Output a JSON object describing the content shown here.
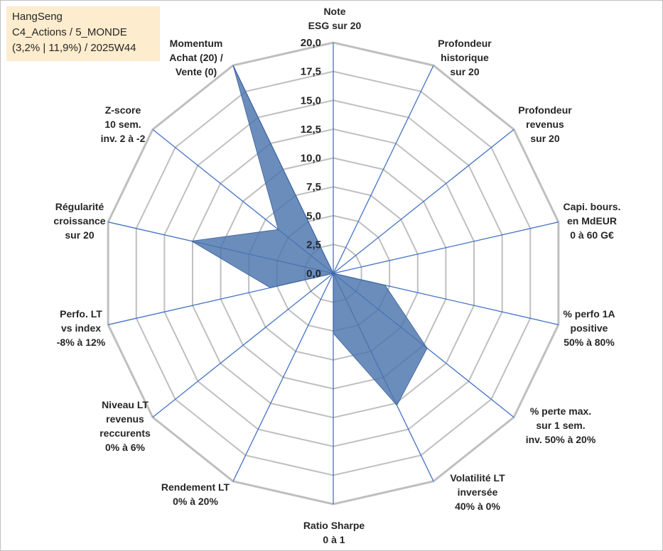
{
  "info_box": {
    "line1": "HangSeng",
    "line2": "C4_Actions / 5_MONDE",
    "line3": "(3,2% | 11,9%) / 2025W44"
  },
  "chart_data": {
    "type": "radar",
    "categories": [
      [
        "Note",
        "ESG sur 20"
      ],
      [
        "Profondeur",
        "historique",
        "sur 20"
      ],
      [
        "Profondeur",
        "revenus",
        "sur 20"
      ],
      [
        "Capi. bours.",
        "en MdEUR",
        "0 à 60 G€"
      ],
      [
        "% perfo 1A",
        "positive",
        "50% à 80%"
      ],
      [
        "% perte max.",
        "sur 1 sem.",
        "inv. 50% à 20%"
      ],
      [
        "Volatilité LT",
        "inversée",
        "40% à 0%"
      ],
      [
        "Ratio Sharpe",
        "0 à 1"
      ],
      [
        "Rendement LT",
        "0% à 20%"
      ],
      [
        "Niveau LT",
        "revenus",
        "reccurents",
        "0% à 6%"
      ],
      [
        "Perfo. LT",
        "vs index",
        "-8% à 12%"
      ],
      [
        "Régularité",
        "croissance",
        "sur 20"
      ],
      [
        "Z-score",
        "10 sem.",
        "inv. 2 à -2"
      ],
      [
        "Momentum",
        "Achat (20) /",
        "Vente (0)"
      ]
    ],
    "values": [
      0,
      0,
      0,
      0,
      4.6,
      10.4,
      12.7,
      5.2,
      0,
      0,
      5.6,
      12.6,
      6.1,
      20
    ],
    "ylim": [
      0,
      20
    ],
    "ticks": [
      "0,0",
      "2,5",
      "5,0",
      "7,5",
      "10,0",
      "12,5",
      "15,0",
      "17,5",
      "20,0"
    ],
    "colors": {
      "fill": "#4a74ad",
      "grid": "#bfbfbf",
      "spoke": "#4472c4"
    }
  }
}
